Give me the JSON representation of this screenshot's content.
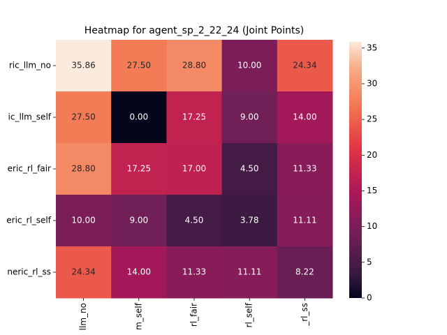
{
  "chart_data": {
    "type": "heatmap",
    "title": "Heatmap for agent_sp_2_22_24 (Joint Points)",
    "x_categories": [
      "llm_no",
      "m_self",
      "rl_fair",
      "rl_self",
      "_rl_ss"
    ],
    "y_categories": [
      "ric_llm_no",
      "ic_llm_self",
      "eric_rl_fair",
      "eric_rl_self",
      "neric_rl_ss"
    ],
    "values": [
      [
        35.86,
        27.5,
        28.8,
        10,
        24.34
      ],
      [
        27.5,
        0,
        17.25,
        9,
        14
      ],
      [
        28.8,
        17.25,
        17,
        4.5,
        11.33
      ],
      [
        10,
        9,
        4.5,
        3.78,
        11.11
      ],
      [
        24.34,
        14,
        11.33,
        11.11,
        8.22
      ]
    ],
    "value_labels": [
      [
        "35.86",
        "27.50",
        "28.80",
        "10.00",
        "24.34"
      ],
      [
        "27.50",
        "0.00",
        "17.25",
        "9.00",
        "14.00"
      ],
      [
        "28.80",
        "17.25",
        "17.00",
        "4.50",
        "11.33"
      ],
      [
        "10.00",
        "9.00",
        "4.50",
        "3.78",
        "11.11"
      ],
      [
        "24.34",
        "14.00",
        "11.33",
        "11.11",
        "8.22"
      ]
    ],
    "colormap": "rocket",
    "colorbar_lim": [
      0,
      35.86
    ],
    "colorbar_ticks": [
      0,
      5,
      10,
      15,
      20,
      25,
      30,
      35
    ]
  }
}
